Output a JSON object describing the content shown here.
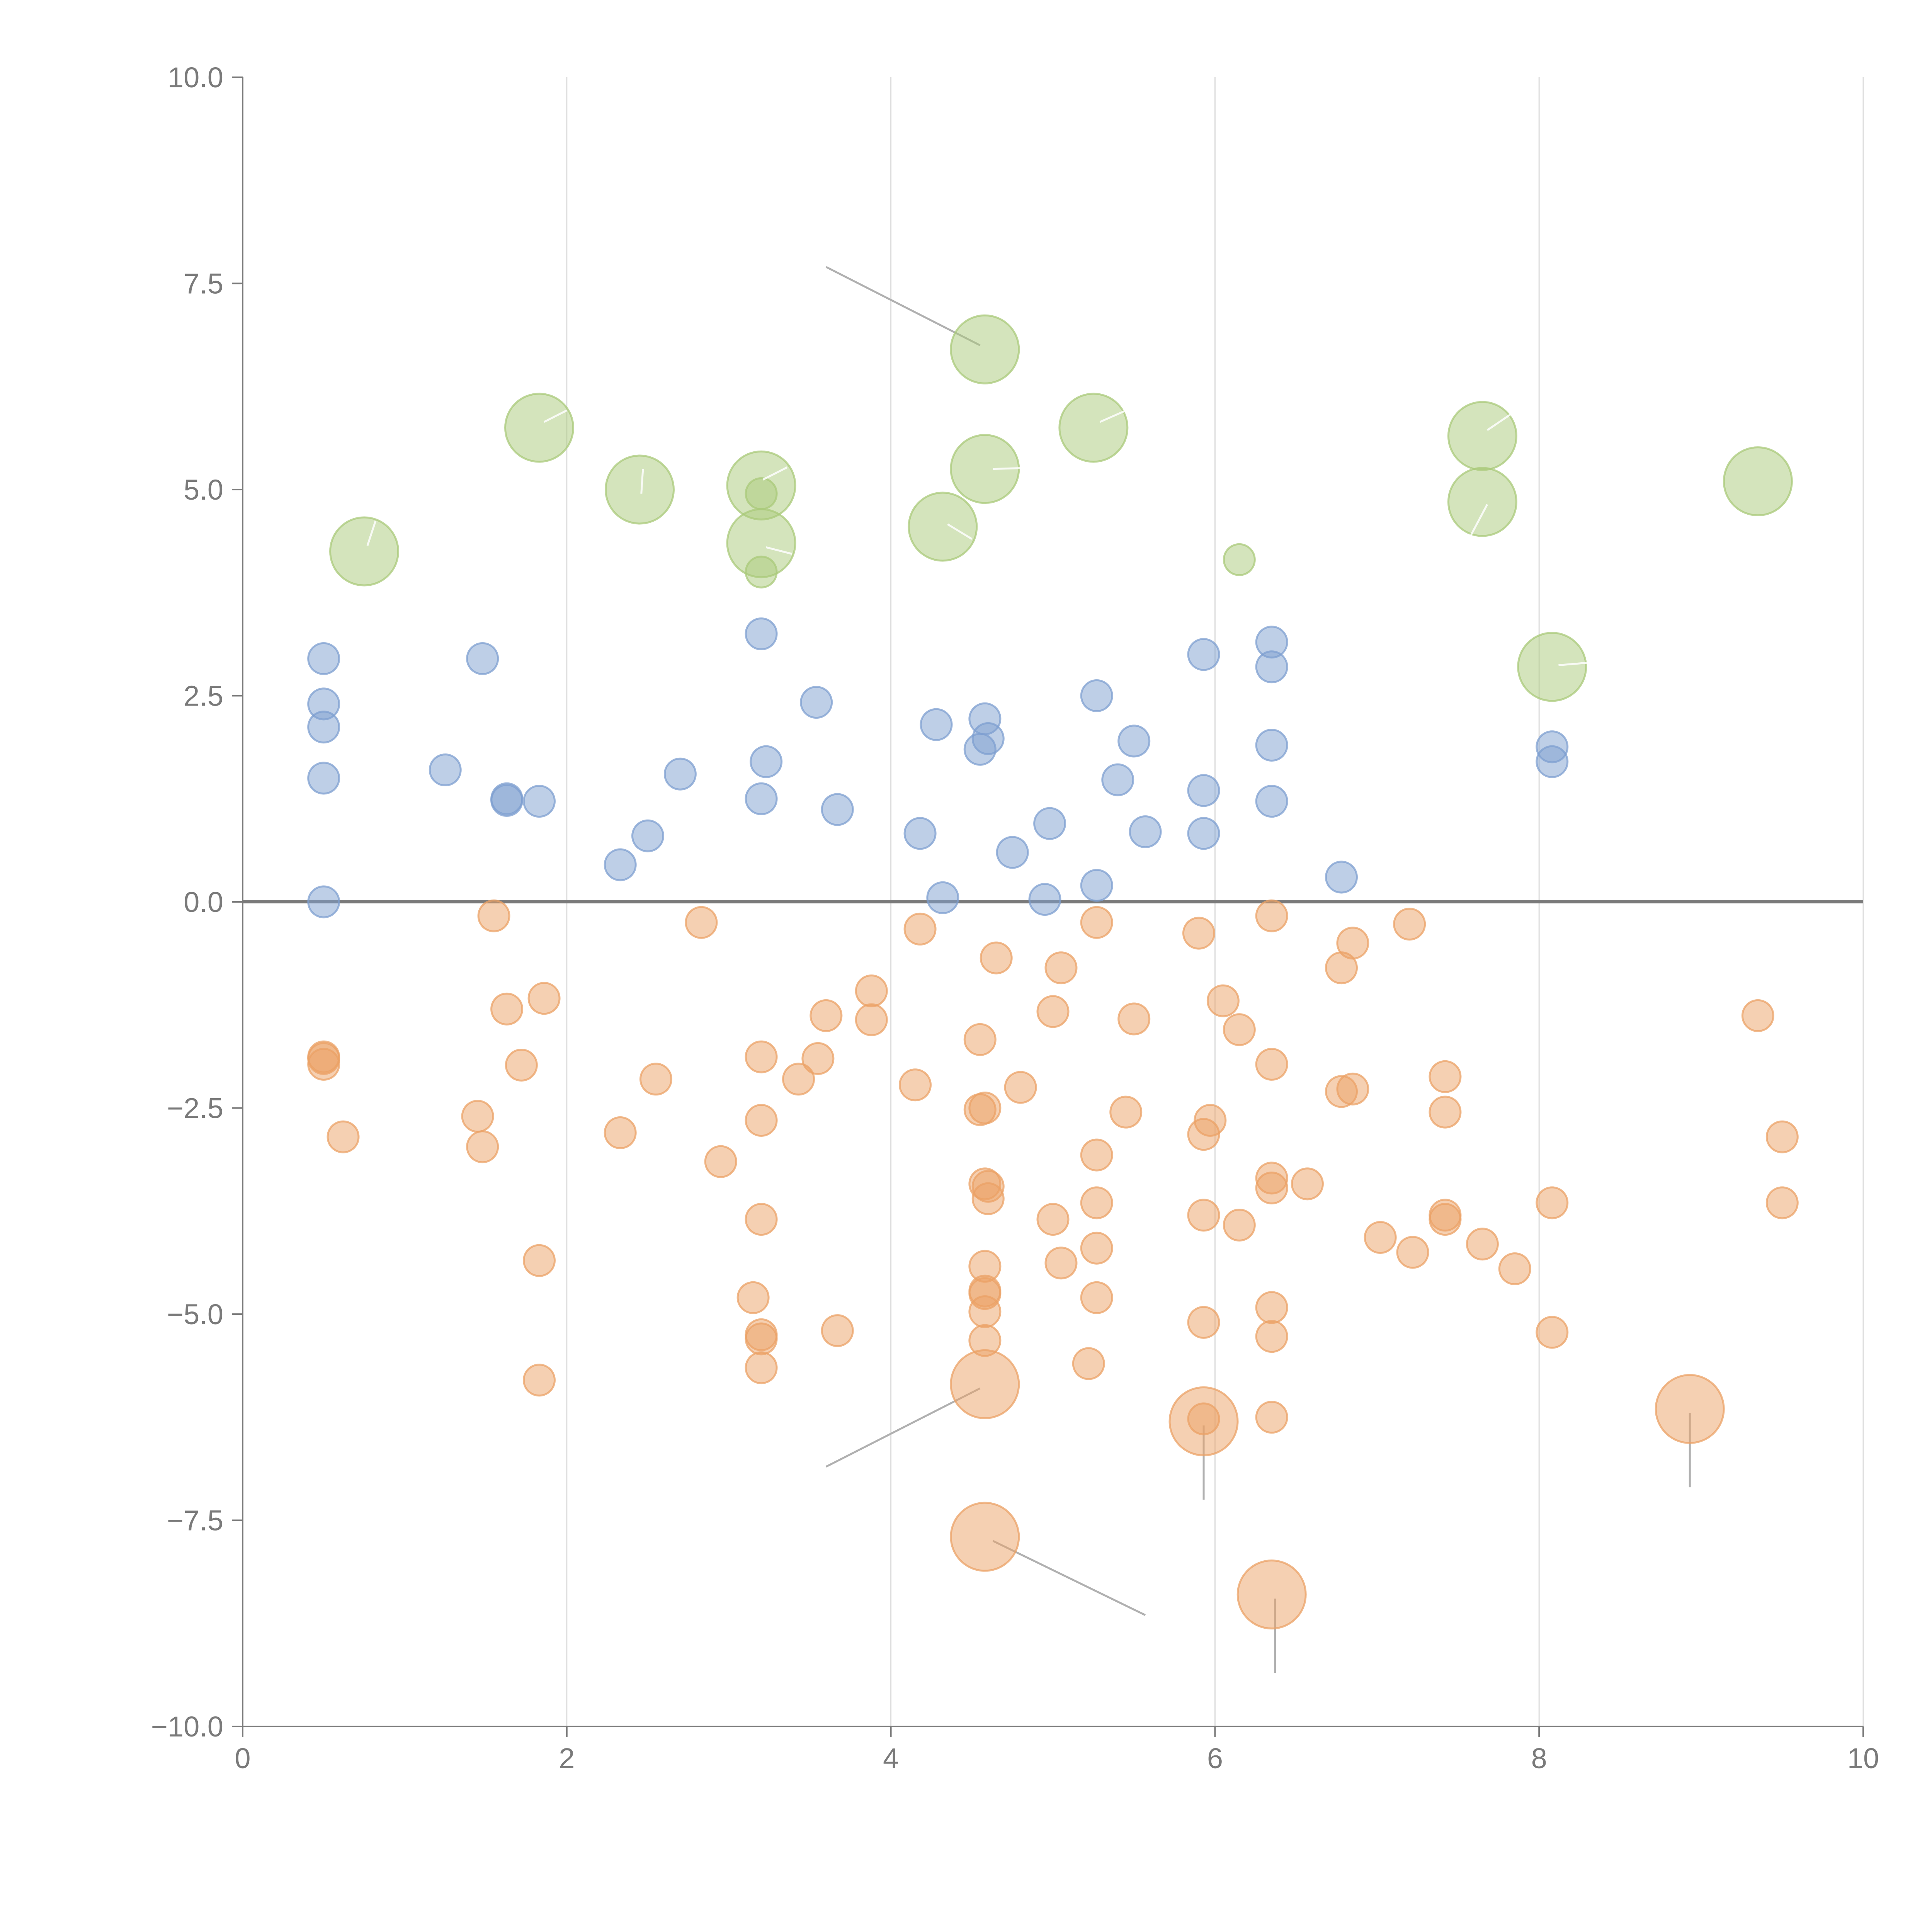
{
  "chart_data": {
    "type": "scatter",
    "title": "",
    "xlabel": "",
    "ylabel": "",
    "xlim": [
      0,
      10
    ],
    "ylim": [
      -10,
      10
    ],
    "x_ticks": [
      0,
      2,
      4,
      6,
      8,
      10
    ],
    "x_tick_labels": [
      "0",
      "2",
      "4",
      "6",
      "8",
      "10"
    ],
    "y_ticks": [
      10,
      7.5,
      5,
      2.5,
      0,
      -2.5,
      -5,
      -7.5,
      -10
    ],
    "y_tick_labels": [
      "10.0",
      "7.5",
      "5.0",
      "2.5",
      "0.0",
      "−2.5",
      "−5.0",
      "−7.5",
      "−10.0"
    ],
    "grid": "vertical",
    "reference_line_y": 0,
    "colors": {
      "green": "#a9c97a",
      "blue": "#7d9fd0",
      "orange": "#eba266"
    },
    "series": [
      {
        "name": "green",
        "points": [
          [
            0.75,
            4.25,
            2.2
          ],
          [
            1.83,
            5.75,
            2.2
          ],
          [
            2.45,
            5.0,
            2.2
          ],
          [
            3.2,
            5.05,
            2.2
          ],
          [
            3.2,
            4.35,
            2.2
          ],
          [
            3.2,
            4.95,
            1.0
          ],
          [
            3.2,
            4.0,
            1.0
          ],
          [
            4.58,
            6.7,
            2.2
          ],
          [
            4.58,
            5.25,
            2.2
          ],
          [
            4.32,
            4.55,
            2.2
          ],
          [
            5.25,
            5.75,
            2.2
          ],
          [
            6.15,
            4.15,
            1.0
          ],
          [
            7.65,
            5.65,
            2.2
          ],
          [
            7.65,
            4.85,
            2.2
          ],
          [
            8.08,
            2.85,
            2.2
          ],
          [
            9.35,
            5.1,
            2.2
          ]
        ]
      },
      {
        "name": "blue",
        "points": [
          [
            0.5,
            2.95,
            1
          ],
          [
            0.5,
            2.4,
            1
          ],
          [
            0.5,
            2.12,
            1
          ],
          [
            0.5,
            1.5,
            1
          ],
          [
            0.5,
            0.0,
            1
          ],
          [
            1.25,
            1.6,
            1
          ],
          [
            1.48,
            2.95,
            1
          ],
          [
            1.63,
            1.25,
            1
          ],
          [
            1.63,
            1.23,
            1
          ],
          [
            1.83,
            1.22,
            1
          ],
          [
            2.33,
            0.45,
            1
          ],
          [
            2.5,
            0.8,
            1
          ],
          [
            2.7,
            1.55,
            1
          ],
          [
            3.2,
            3.25,
            1
          ],
          [
            3.23,
            1.7,
            1
          ],
          [
            3.2,
            1.25,
            1
          ],
          [
            3.54,
            2.42,
            1
          ],
          [
            3.67,
            1.12,
            1
          ],
          [
            4.18,
            0.83,
            1
          ],
          [
            4.28,
            2.15,
            1
          ],
          [
            4.32,
            0.05,
            1
          ],
          [
            4.58,
            2.22,
            1
          ],
          [
            4.6,
            1.98,
            1
          ],
          [
            4.55,
            1.85,
            1
          ],
          [
            4.75,
            0.6,
            1
          ],
          [
            4.95,
            0.03,
            1
          ],
          [
            4.98,
            0.95,
            1
          ],
          [
            5.27,
            2.5,
            1
          ],
          [
            5.27,
            0.2,
            1
          ],
          [
            5.5,
            1.95,
            1
          ],
          [
            5.4,
            1.48,
            1
          ],
          [
            5.57,
            0.85,
            1
          ],
          [
            5.93,
            3.0,
            1
          ],
          [
            5.93,
            1.35,
            1
          ],
          [
            5.93,
            0.83,
            1
          ],
          [
            6.35,
            3.15,
            1
          ],
          [
            6.35,
            2.85,
            1
          ],
          [
            6.35,
            1.9,
            1
          ],
          [
            6.35,
            1.22,
            1
          ],
          [
            6.78,
            0.3,
            1
          ],
          [
            8.08,
            1.88,
            1
          ],
          [
            8.08,
            1.7,
            1
          ]
        ]
      },
      {
        "name": "orange",
        "points": [
          [
            0.5,
            -1.88,
            1
          ],
          [
            0.5,
            -1.9,
            1
          ],
          [
            0.5,
            -1.97,
            1
          ],
          [
            0.62,
            -2.85,
            1
          ],
          [
            1.55,
            -0.17,
            1
          ],
          [
            1.63,
            -1.3,
            1
          ],
          [
            1.72,
            -1.98,
            1
          ],
          [
            1.45,
            -2.6,
            1
          ],
          [
            1.48,
            -2.97,
            1
          ],
          [
            1.86,
            -1.17,
            1
          ],
          [
            1.83,
            -4.35,
            1
          ],
          [
            1.83,
            -5.8,
            1
          ],
          [
            2.33,
            -2.8,
            1
          ],
          [
            2.55,
            -2.15,
            1
          ],
          [
            2.83,
            -0.25,
            1
          ],
          [
            2.95,
            -3.15,
            1
          ],
          [
            3.2,
            -1.88,
            1
          ],
          [
            3.2,
            -2.65,
            1
          ],
          [
            3.2,
            -3.85,
            1
          ],
          [
            3.15,
            -4.8,
            1
          ],
          [
            3.2,
            -5.25,
            1
          ],
          [
            3.2,
            -5.3,
            1
          ],
          [
            3.2,
            -5.65,
            1
          ],
          [
            3.43,
            -2.15,
            1
          ],
          [
            3.55,
            -1.9,
            1
          ],
          [
            3.6,
            -1.38,
            1
          ],
          [
            3.67,
            -5.2,
            1
          ],
          [
            3.88,
            -1.08,
            1
          ],
          [
            3.88,
            -1.43,
            1
          ],
          [
            4.15,
            -2.22,
            1
          ],
          [
            4.18,
            -0.33,
            1
          ],
          [
            4.55,
            -1.67,
            1
          ],
          [
            4.55,
            -2.52,
            1
          ],
          [
            4.58,
            -2.5,
            1
          ],
          [
            4.58,
            -3.42,
            1
          ],
          [
            4.6,
            -3.45,
            1
          ],
          [
            4.6,
            -3.6,
            1
          ],
          [
            4.58,
            -4.42,
            1
          ],
          [
            4.58,
            -4.72,
            1
          ],
          [
            4.58,
            -4.75,
            1
          ],
          [
            4.58,
            -4.97,
            1
          ],
          [
            4.58,
            -5.32,
            1
          ],
          [
            4.58,
            -5.85,
            2.2
          ],
          [
            4.58,
            -7.7,
            2.2
          ],
          [
            4.65,
            -0.68,
            1
          ],
          [
            4.8,
            -2.25,
            1
          ],
          [
            5.05,
            -0.8,
            1
          ],
          [
            5.0,
            -1.33,
            1
          ],
          [
            5.0,
            -3.85,
            1
          ],
          [
            5.05,
            -4.38,
            1
          ],
          [
            5.27,
            -0.25,
            1
          ],
          [
            5.27,
            -3.07,
            1
          ],
          [
            5.27,
            -3.65,
            1
          ],
          [
            5.27,
            -4.2,
            1
          ],
          [
            5.27,
            -4.8,
            1
          ],
          [
            5.22,
            -5.6,
            1
          ],
          [
            5.5,
            -1.42,
            1
          ],
          [
            5.45,
            -2.55,
            1
          ],
          [
            5.9,
            -0.38,
            1
          ],
          [
            6.05,
            -1.2,
            1
          ],
          [
            6.15,
            -1.55,
            1
          ],
          [
            5.97,
            -2.65,
            1
          ],
          [
            5.93,
            -2.82,
            1
          ],
          [
            5.93,
            -3.8,
            1
          ],
          [
            6.15,
            -3.92,
            1
          ],
          [
            5.93,
            -5.1,
            1
          ],
          [
            5.93,
            -6.3,
            2.2
          ],
          [
            5.93,
            -6.27,
            1
          ],
          [
            6.35,
            -0.17,
            1
          ],
          [
            6.35,
            -1.97,
            1
          ],
          [
            6.35,
            -3.35,
            1
          ],
          [
            6.35,
            -3.47,
            1
          ],
          [
            6.57,
            -3.42,
            1
          ],
          [
            6.35,
            -4.92,
            1
          ],
          [
            6.35,
            -5.27,
            1
          ],
          [
            6.35,
            -6.25,
            1
          ],
          [
            6.35,
            -8.4,
            2.2
          ],
          [
            6.85,
            -0.5,
            1
          ],
          [
            6.78,
            -0.8,
            1
          ],
          [
            6.78,
            -2.3,
            1
          ],
          [
            6.85,
            -2.27,
            1
          ],
          [
            7.02,
            -4.07,
            1
          ],
          [
            7.2,
            -0.27,
            1
          ],
          [
            7.22,
            -4.25,
            1
          ],
          [
            7.42,
            -2.12,
            1
          ],
          [
            7.42,
            -2.55,
            1
          ],
          [
            7.42,
            -3.8,
            1
          ],
          [
            7.42,
            -3.85,
            1
          ],
          [
            7.65,
            -4.15,
            1
          ],
          [
            7.85,
            -4.45,
            1
          ],
          [
            8.08,
            -3.65,
            1
          ],
          [
            8.08,
            -5.22,
            1
          ],
          [
            8.93,
            -6.15,
            2.2
          ],
          [
            9.35,
            -1.38,
            1
          ],
          [
            9.5,
            -2.85,
            1
          ],
          [
            9.5,
            -3.65,
            1
          ]
        ]
      }
    ],
    "leader_lines": [
      [
        [
          4.55,
          6.75
        ],
        [
          3.6,
          7.7
        ]
      ],
      [
        [
          4.55,
          -5.9
        ],
        [
          3.6,
          -6.85
        ]
      ],
      [
        [
          4.63,
          -7.75
        ],
        [
          5.57,
          -8.65
        ]
      ],
      [
        [
          5.93,
          -6.35
        ],
        [
          5.93,
          -7.25
        ]
      ],
      [
        [
          6.37,
          -8.45
        ],
        [
          6.37,
          -9.35
        ]
      ],
      [
        [
          8.93,
          -6.2
        ],
        [
          8.93,
          -7.1
        ]
      ]
    ],
    "label_ticks": [
      [
        [
          0.77,
          4.32
        ],
        [
          0.82,
          4.62
        ]
      ],
      [
        [
          1.86,
          5.82
        ],
        [
          2.0,
          5.96
        ]
      ],
      [
        [
          2.46,
          4.95
        ],
        [
          2.47,
          5.25
        ]
      ],
      [
        [
          3.21,
          5.12
        ],
        [
          3.36,
          5.27
        ]
      ],
      [
        [
          3.23,
          4.3
        ],
        [
          3.39,
          4.22
        ]
      ],
      [
        [
          4.35,
          4.58
        ],
        [
          4.5,
          4.4
        ]
      ],
      [
        [
          4.63,
          5.25
        ],
        [
          4.8,
          5.26
        ]
      ],
      [
        [
          5.29,
          5.82
        ],
        [
          5.44,
          5.95
        ]
      ],
      [
        [
          7.68,
          5.72
        ],
        [
          7.83,
          5.92
        ]
      ],
      [
        [
          7.68,
          4.82
        ],
        [
          7.58,
          4.45
        ]
      ],
      [
        [
          8.12,
          2.87
        ],
        [
          8.3,
          2.9
        ]
      ]
    ]
  }
}
